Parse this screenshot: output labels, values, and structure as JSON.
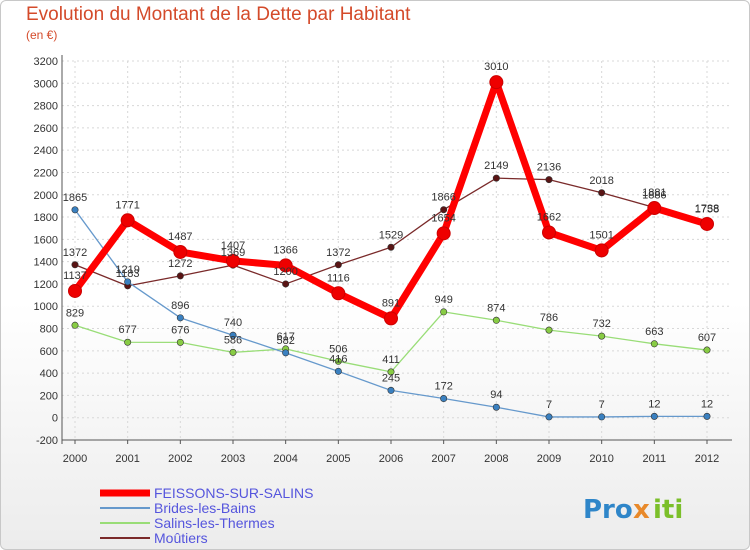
{
  "title": "Evolution du Montant de la Dette par Habitant",
  "subtitle": "(en €)",
  "logo": {
    "parts": [
      "Pro",
      "x",
      "iti"
    ],
    "colors": [
      "#2f86c9",
      "#e8892a",
      "#7bbf2a"
    ]
  },
  "chart_data": {
    "type": "line",
    "title": "Evolution du Montant de la Dette par Habitant",
    "ylabel": "(en €)",
    "xlabel": "",
    "ylim": [
      -200,
      3200
    ],
    "yticks": [
      -200,
      0,
      200,
      400,
      600,
      800,
      1000,
      1200,
      1400,
      1600,
      1800,
      2000,
      2200,
      2400,
      2600,
      2800,
      3000,
      3200
    ],
    "grid": true,
    "legend_position": "bottom-left",
    "x": [
      "2000",
      "2001",
      "2002",
      "2003",
      "2004",
      "2005",
      "2006",
      "2007",
      "2008",
      "2009",
      "2010",
      "2011",
      "2012"
    ],
    "series": [
      {
        "name": "Moûtiers",
        "color": "#7a2a2a",
        "width": 1.3,
        "marker": "#5a1414",
        "values": [
          1372,
          1183,
          1272,
          1369,
          1200,
          1372,
          1529,
          1866,
          2149,
          2136,
          2018,
          1886,
          1758
        ]
      },
      {
        "name": "Salins-les-Thermes",
        "color": "#99dd77",
        "width": 1.3,
        "marker": "#88cc44",
        "values": [
          829,
          677,
          676,
          586,
          617,
          506,
          411,
          949,
          874,
          786,
          732,
          663,
          607
        ]
      },
      {
        "name": "Brides-les-Bains",
        "color": "#6699cc",
        "width": 1.3,
        "marker": "#3a80c0",
        "values": [
          1865,
          1219,
          896,
          740,
          582,
          416,
          245,
          172,
          94,
          7,
          7,
          12,
          12
        ]
      },
      {
        "name": "FEISSONS-SUR-SALINS",
        "color": "#ff0000",
        "width": 7,
        "marker": "#ee0000",
        "values": [
          1137,
          1771,
          1487,
          1407,
          1366,
          1116,
          891,
          1654,
          3010,
          1662,
          1501,
          1881,
          1738
        ]
      }
    ],
    "legend_order": [
      "FEISSONS-SUR-SALINS",
      "Brides-les-Bains",
      "Salins-les-Thermes",
      "Moûtiers"
    ]
  }
}
